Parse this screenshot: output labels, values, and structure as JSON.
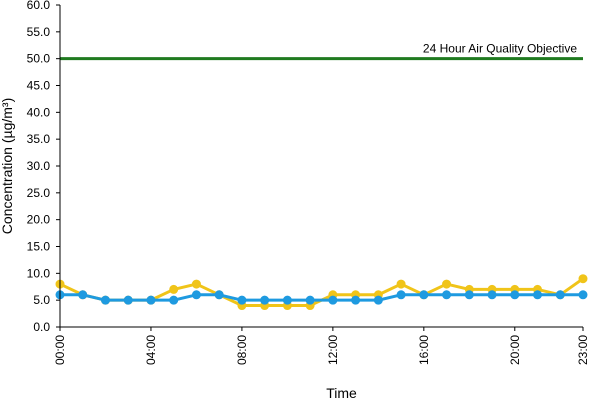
{
  "chart_data": {
    "type": "line",
    "xlabel": "Time",
    "ylabel": "Concentration (µg/m³)",
    "ylim": [
      0,
      60
    ],
    "y_ticks": [
      "0.0",
      "5.0",
      "10.0",
      "15.0",
      "20.0",
      "25.0",
      "30.0",
      "35.0",
      "40.0",
      "45.0",
      "50.0",
      "55.0",
      "60.0"
    ],
    "x_range": [
      0,
      23
    ],
    "x_tick_hours": [
      0,
      4,
      8,
      12,
      16,
      20,
      23
    ],
    "x_ticks": [
      "00:00",
      "04:00",
      "08:00",
      "12:00",
      "16:00",
      "20:00",
      "23:00"
    ],
    "grid": false,
    "reference_line": {
      "label": "24 Hour Air Quality Objective",
      "value": 50,
      "color": "#1f7a1f"
    },
    "x": [
      0,
      1,
      2,
      3,
      4,
      5,
      6,
      7,
      8,
      9,
      10,
      11,
      12,
      13,
      14,
      15,
      16,
      17,
      18,
      19,
      20,
      21,
      22,
      23
    ],
    "series": [
      {
        "color": "#f0c419",
        "values": [
          8,
          6,
          5,
          5,
          5,
          7,
          8,
          6,
          4,
          4,
          4,
          4,
          6,
          6,
          6,
          8,
          6,
          8,
          7,
          7,
          7,
          7,
          6,
          9
        ]
      },
      {
        "color": "#1e9ae0",
        "values": [
          6,
          6,
          5,
          5,
          5,
          5,
          6,
          6,
          5,
          5,
          5,
          5,
          5,
          5,
          5,
          6,
          6,
          6,
          6,
          6,
          6,
          6,
          6,
          6
        ]
      }
    ]
  }
}
